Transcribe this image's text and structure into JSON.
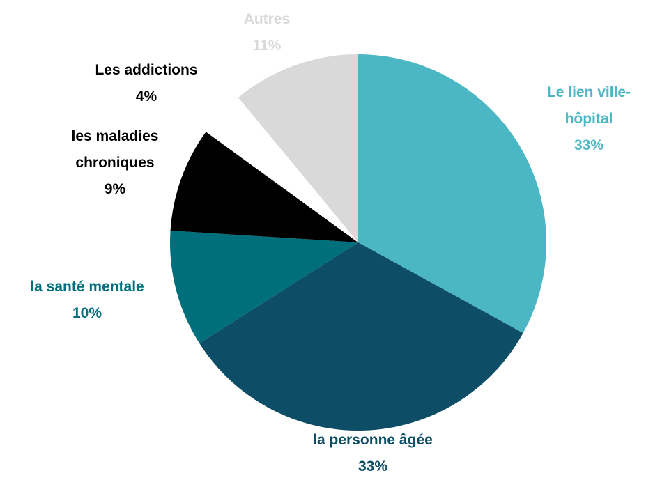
{
  "chart_data": {
    "type": "pie",
    "categories": [
      "Le lien ville-hôpital",
      "la personne âgée",
      "la santé mentale",
      "les maladies chroniques",
      "Les addictions",
      "Autres"
    ],
    "values": [
      33,
      33,
      10,
      9,
      4,
      11
    ],
    "value_labels": [
      "33%",
      "33%",
      "10%",
      "9%",
      "4%",
      "11%"
    ],
    "colors": [
      "#4bb7c5",
      "#0e4d66",
      "#006f7c",
      "#000000",
      "#ffffff",
      "#d9d9d9"
    ],
    "label_colors": [
      "#4bb7c5",
      "#0e4d66",
      "#006f7c",
      "#000000",
      "#000000",
      "#d9d9d9"
    ]
  }
}
